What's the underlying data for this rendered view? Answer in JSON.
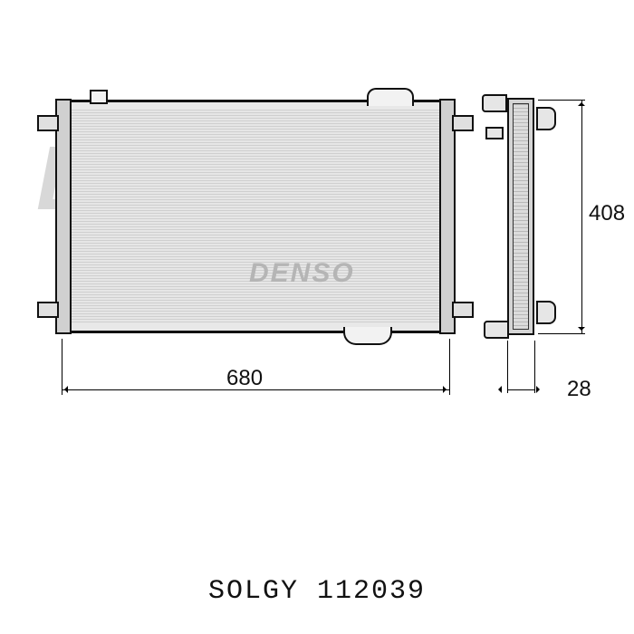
{
  "watermark": {
    "text": "DENSO",
    "color_large": "#d8d8d8",
    "color_mid": "#b5b5b5",
    "fontsize_large": 100,
    "fontsize_mid": 30
  },
  "diagram": {
    "type": "engineering-drawing",
    "part": "automotive-radiator",
    "front_view": {
      "stroke": "#111111",
      "fill": "#e8e8e8",
      "fin_color_a": "#cfcfcf",
      "fin_color_b": "#e6e6e6"
    },
    "side_view": {
      "stroke": "#111111",
      "fill": "#d5d5d5"
    },
    "dimensions": {
      "width_mm": 680,
      "height_mm": 408,
      "depth_mm": 28,
      "label_fontsize": 24,
      "label_color": "#111111",
      "line_color": "#000000"
    }
  },
  "footer": {
    "brand": "SOLGY",
    "part_number": "112039",
    "font_family": "Courier New",
    "fontsize": 30,
    "color": "#111111"
  }
}
